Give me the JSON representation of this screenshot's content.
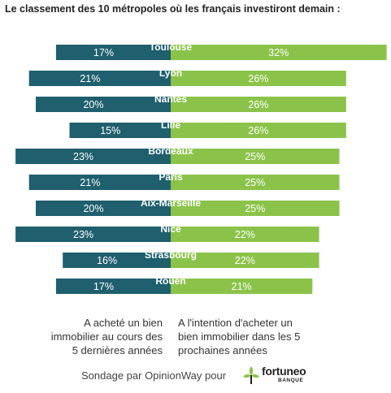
{
  "chart_data": {
    "type": "bar",
    "orientation": "horizontal-diverging",
    "title": "Le classement des 10 métropoles où les français investiront demain :",
    "categories": [
      "Toulouse",
      "Lyon",
      "Nantes",
      "Lille",
      "Bordeaux",
      "Paris",
      "Aix-Marseille",
      "Nice",
      "Strasbourg",
      "Rouen"
    ],
    "series": [
      {
        "name": "A acheté un bien immobilier au cours des 5 dernières années",
        "color": "#1f5f6e",
        "values": [
          17,
          21,
          20,
          15,
          23,
          21,
          20,
          23,
          16,
          17
        ],
        "labels": [
          "17%",
          "21%",
          "20%",
          "15%",
          "23%",
          "21%",
          "20%",
          "23%",
          "16%",
          "17%"
        ]
      },
      {
        "name": "A l'intention d'acheter un bien immobilier dans les 5 prochaines années",
        "color": "#8bc34a",
        "values": [
          32,
          26,
          26,
          26,
          25,
          25,
          25,
          22,
          22,
          21
        ],
        "labels": [
          "32%",
          "26%",
          "26%",
          "26%",
          "25%",
          "25%",
          "25%",
          "22%",
          "22%",
          "21%"
        ]
      }
    ],
    "legend": "bottom",
    "grid": false
  },
  "legend": {
    "left_lines": [
      "A acheté un bien",
      "immobilier  au cours des",
      "5 dernières années"
    ],
    "right_lines": [
      "A l'intention d'acheter un",
      "bien immobilier dans les 5",
      "prochaines années"
    ]
  },
  "footer": {
    "text": "Sondage par OpinionWay pour",
    "logo_name": "fortuneo",
    "logo_sub": "BANQUE"
  }
}
